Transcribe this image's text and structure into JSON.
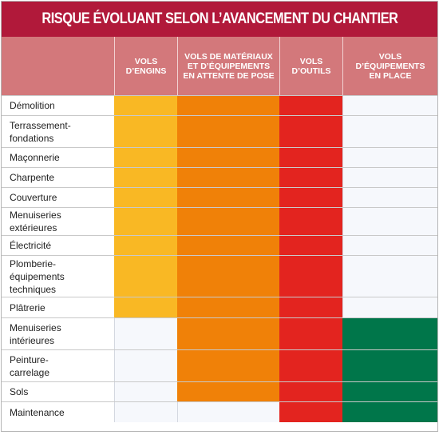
{
  "title": "RISQUE ÉVOLUANT SELON  L’AVANCEMENT DU CHANTIER",
  "colors": {
    "title_bg": "#b1193a",
    "header_bg": "#d3787b",
    "vols_engins": "#f9b824",
    "vols_materiaux": "#f08108",
    "vols_outils": "#e3241f",
    "vols_equipements_en_place": "#00764a",
    "empty": "#f6f8fc"
  },
  "chart_data": {
    "type": "table",
    "title": "RISQUE ÉVOLUANT SELON  L’AVANCEMENT DU CHANTIER",
    "columns": [
      "VOLS\nD’ENGINS",
      "VOLS DE MATÉRIAUX\nET D’ÉQUIPEMENTS\nEN ATTENTE DE POSE",
      "VOLS\nD’OUTILS",
      "VOLS\nD’ÉQUIPEMENTS\nEN PLACE"
    ],
    "column_colors": [
      "#f9b824",
      "#f08108",
      "#e3241f",
      "#00764a"
    ],
    "rows": [
      {
        "label": "Démolition",
        "risk": [
          1,
          1,
          1,
          0
        ]
      },
      {
        "label": "Terrassement-\nfondations",
        "risk": [
          1,
          1,
          1,
          0
        ]
      },
      {
        "label": "Maçonnerie",
        "risk": [
          1,
          1,
          1,
          0
        ]
      },
      {
        "label": "Charpente",
        "risk": [
          1,
          1,
          1,
          0
        ]
      },
      {
        "label": "Couverture",
        "risk": [
          1,
          1,
          1,
          0
        ]
      },
      {
        "label": "Menuiseries\nextérieures",
        "risk": [
          1,
          1,
          1,
          0
        ]
      },
      {
        "label": "Électricité",
        "risk": [
          1,
          1,
          1,
          0
        ]
      },
      {
        "label": "Plomberie-\néquipements\ntechniques",
        "risk": [
          1,
          1,
          1,
          0
        ]
      },
      {
        "label": "Plâtrerie",
        "risk": [
          1,
          1,
          1,
          0
        ]
      },
      {
        "label": "Menuiseries\nintérieures",
        "risk": [
          0,
          1,
          1,
          1
        ]
      },
      {
        "label": "Peinture-\ncarrelage",
        "risk": [
          0,
          1,
          1,
          1
        ]
      },
      {
        "label": "Sols",
        "risk": [
          0,
          1,
          1,
          1
        ]
      },
      {
        "label": "Maintenance",
        "risk": [
          0,
          0,
          1,
          1
        ]
      }
    ]
  }
}
